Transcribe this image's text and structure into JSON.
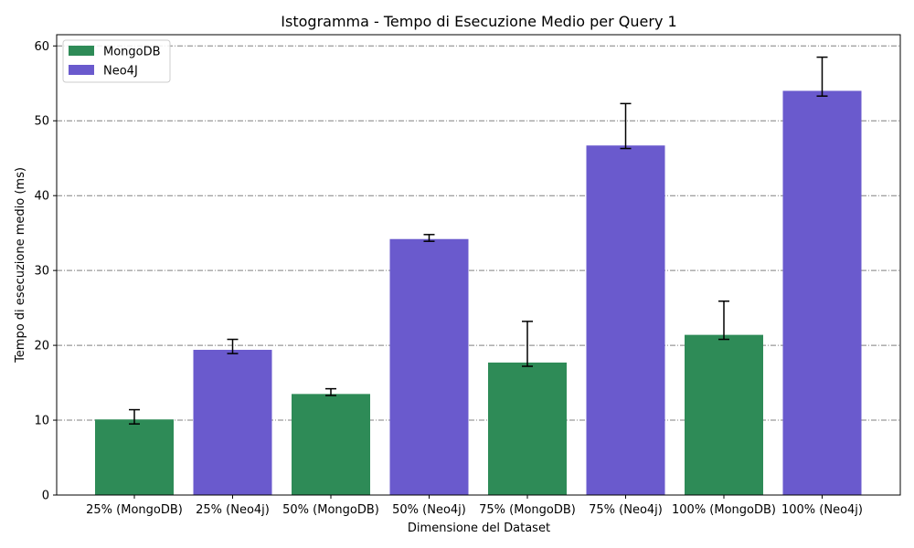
{
  "chart_data": {
    "type": "bar",
    "title": "Istogramma - Tempo di Esecuzione Medio per Query 1",
    "xlabel": "Dimensione del Dataset",
    "ylabel": "Tempo di esecuzione medio (ms)",
    "ylim": [
      0,
      61.5
    ],
    "yticks": [
      0,
      10,
      20,
      30,
      40,
      50,
      60
    ],
    "grid": "horizontal dash-dot",
    "legend_position": "top-left",
    "categories": [
      "25% (MongoDB)",
      "25% (Neo4j)",
      "50% (MongoDB)",
      "50% (Neo4j)",
      "75% (MongoDB)",
      "75% (Neo4j)",
      "100% (MongoDB)",
      "100% (Neo4j)"
    ],
    "values": [
      10.1,
      19.4,
      13.5,
      34.2,
      17.7,
      46.7,
      21.4,
      54.0
    ],
    "error_low": [
      9.5,
      18.9,
      13.3,
      33.9,
      17.2,
      46.3,
      20.8,
      53.3
    ],
    "error_high": [
      11.4,
      20.8,
      14.2,
      34.8,
      23.2,
      52.3,
      25.9,
      58.5
    ],
    "bar_series": [
      "MongoDB",
      "Neo4J",
      "MongoDB",
      "Neo4J",
      "MongoDB",
      "Neo4J",
      "MongoDB",
      "Neo4J"
    ],
    "series": [
      {
        "name": "MongoDB",
        "color": "#2e8b57"
      },
      {
        "name": "Neo4J",
        "color": "#6a5acd"
      }
    ]
  }
}
